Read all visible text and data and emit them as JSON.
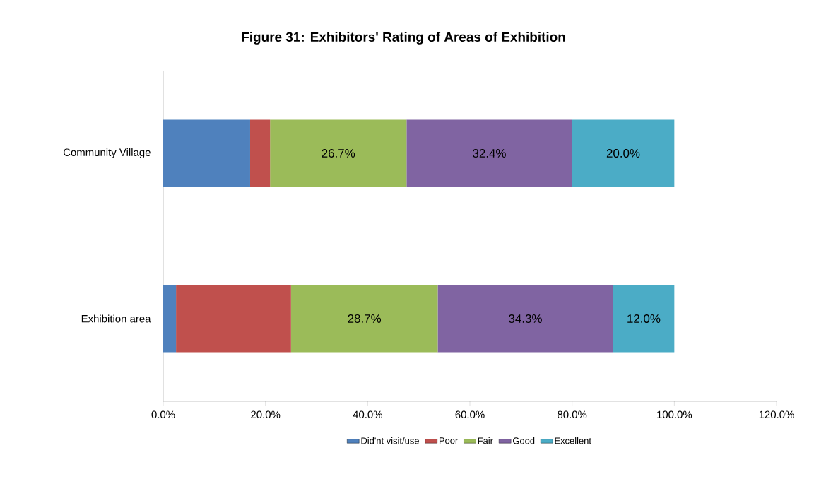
{
  "chart_data": {
    "type": "bar",
    "orientation": "horizontal",
    "stacked": true,
    "title": "Figure 31: Exhibitors' Rating of Areas of Exhibition",
    "categories": [
      "Community Village",
      "Exhibition area"
    ],
    "series": [
      {
        "name": "Did'nt visit/use",
        "color": "#4f81bd",
        "values": [
          17.0,
          2.5
        ],
        "value_labels": [
          null,
          null
        ]
      },
      {
        "name": "Poor",
        "color": "#c0504d",
        "values": [
          3.9,
          22.5
        ],
        "value_labels": [
          null,
          null
        ]
      },
      {
        "name": "Fair",
        "color": "#9bbb59",
        "values": [
          26.7,
          28.7
        ],
        "value_labels": [
          "26.7%",
          "28.7%"
        ]
      },
      {
        "name": "Good",
        "color": "#8064a2",
        "values": [
          32.4,
          34.3
        ],
        "value_labels": [
          "32.4%",
          "34.3%"
        ]
      },
      {
        "name": "Excellent",
        "color": "#4bacc6",
        "values": [
          20.0,
          12.0
        ],
        "value_labels": [
          "20.0%",
          "12.0%"
        ]
      }
    ],
    "xlim": [
      0,
      120
    ],
    "xticks": [
      {
        "value": 0,
        "label": "0.0%"
      },
      {
        "value": 20,
        "label": "20.0%"
      },
      {
        "value": 40,
        "label": "40.0%"
      },
      {
        "value": 60,
        "label": "60.0%"
      },
      {
        "value": 80,
        "label": "80.0%"
      },
      {
        "value": 100,
        "label": "100.0%"
      },
      {
        "value": 120,
        "label": "120.0%"
      }
    ],
    "grid": false,
    "legend": "bottom"
  }
}
